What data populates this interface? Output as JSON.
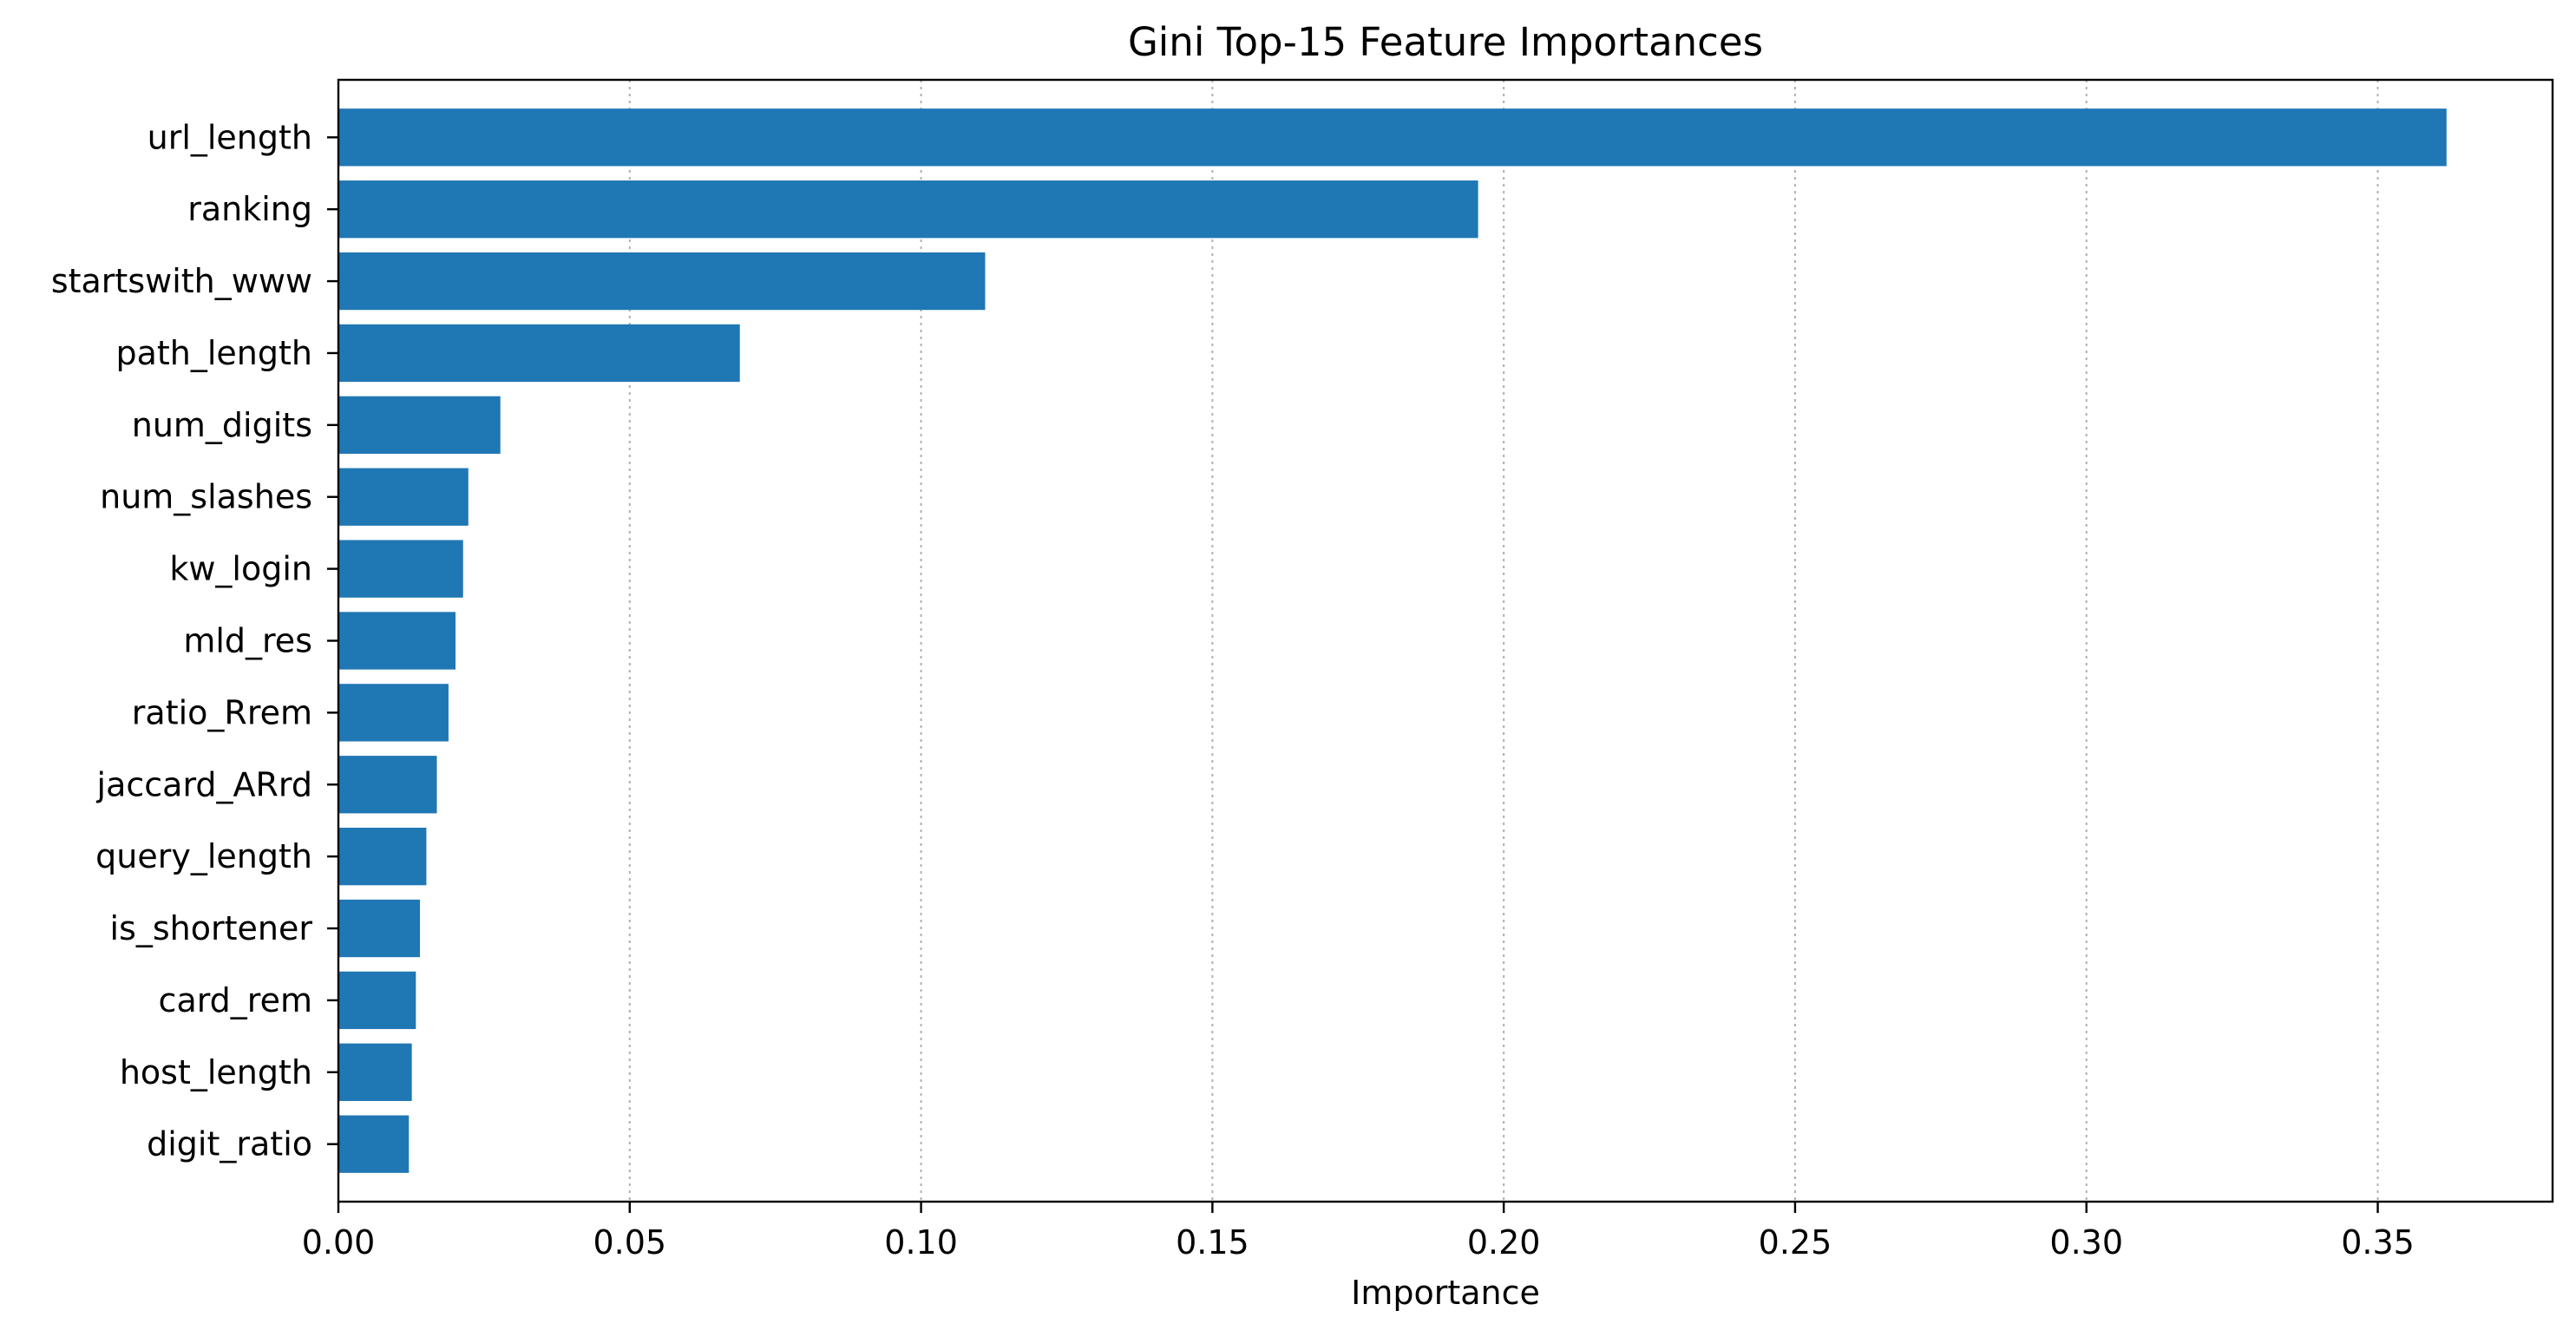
{
  "chart_data": {
    "type": "bar",
    "orientation": "horizontal",
    "title": "Gini Top-15 Feature Importances",
    "xlabel": "Importance",
    "ylabel": "",
    "categories": [
      "url_length",
      "ranking",
      "startswith_www",
      "path_length",
      "num_digits",
      "num_slashes",
      "kw_login",
      "mld_res",
      "ratio_Rrem",
      "jaccard_ARrd",
      "query_length",
      "is_shortener",
      "card_rem",
      "host_length",
      "digit_ratio"
    ],
    "values": [
      0.3618,
      0.1956,
      0.111,
      0.0689,
      0.0278,
      0.0223,
      0.0214,
      0.0201,
      0.0189,
      0.0169,
      0.0151,
      0.014,
      0.0133,
      0.0126,
      0.0121
    ],
    "xlim": [
      0,
      0.38
    ],
    "xticks": [
      "0.00",
      "0.05",
      "0.10",
      "0.15",
      "0.20",
      "0.25",
      "0.30",
      "0.35"
    ],
    "xtick_values": [
      0,
      0.05,
      0.1,
      0.15,
      0.2,
      0.25,
      0.3,
      0.35
    ],
    "grid": "x-axis, dotted",
    "legend": "none",
    "bar_color": "#1f77b4"
  }
}
